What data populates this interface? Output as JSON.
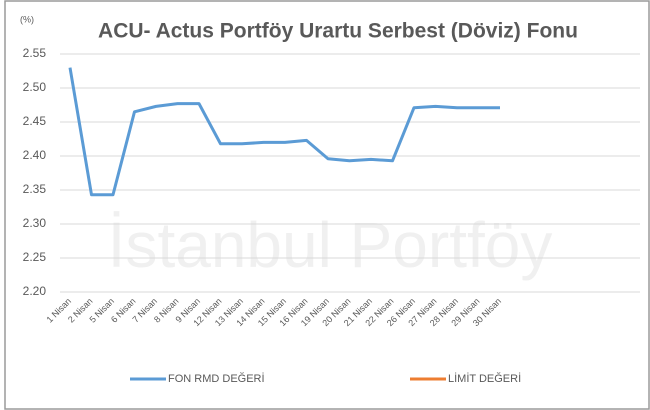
{
  "chart_data": {
    "type": "line",
    "title": "ACU- Actus Portföy Urartu Serbest (Döviz) Fonu",
    "y_label": "(%)",
    "watermark": "İstanbul Portföy",
    "categories": [
      "1 Nisan",
      "2 Nisan",
      "5 Nisan",
      "6 Nisan",
      "7 Nisan",
      "8 Nisan",
      "9 Nisan",
      "12 Nisan",
      "13 Nisan",
      "14 Nisan",
      "15 Nisan",
      "16 Nisan",
      "19 Nisan",
      "20 Nisan",
      "21 Nisan",
      "22 Nisan",
      "26 Nisan",
      "27 Nisan",
      "28 Nisan",
      "29 Nisan",
      "30 Nisan"
    ],
    "series": [
      {
        "name": "FON RMD DEĞERİ",
        "color": "#5b9bd5",
        "values": [
          2.53,
          2.343,
          2.343,
          2.465,
          2.473,
          2.477,
          2.477,
          2.418,
          2.418,
          2.42,
          2.42,
          2.423,
          2.396,
          2.393,
          2.395,
          2.393,
          2.471,
          2.473,
          2.471,
          2.471,
          2.471
        ]
      },
      {
        "name": "LİMİT DEĞERİ",
        "color": "#ed7d31",
        "values": [
          null,
          null,
          null,
          null,
          null,
          null,
          null,
          null,
          null,
          null,
          null,
          null,
          null,
          null,
          null,
          null,
          null,
          null,
          null,
          null,
          null
        ]
      }
    ],
    "ylim": [
      2.2,
      2.55
    ],
    "yticks": [
      {
        "value": 2.2,
        "label": "2.20"
      },
      2.25,
      {
        "value": 2.3,
        "label": "2.30"
      },
      2.35,
      {
        "value": 2.4,
        "label": "2.40"
      },
      2.45,
      {
        "value": 2.5,
        "label": "2.50"
      },
      2.55
    ],
    "grid": true,
    "legend": "bottom"
  }
}
